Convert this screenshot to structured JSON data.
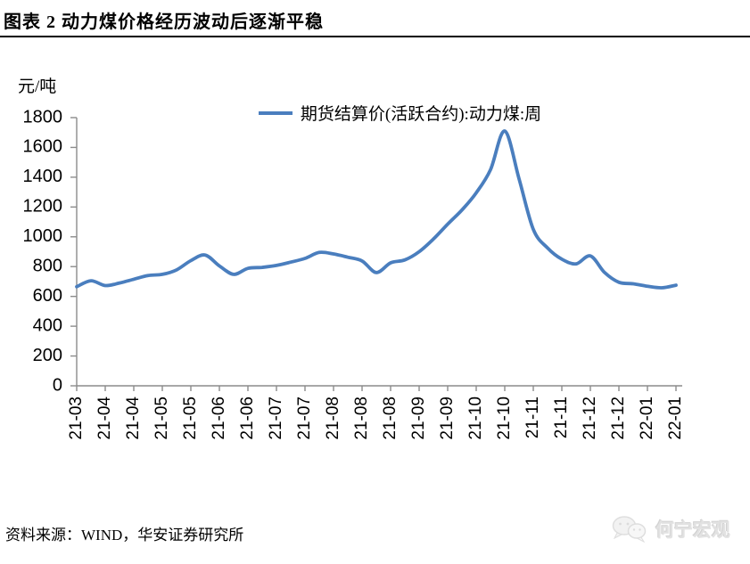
{
  "header": {
    "title": "图表 2  动力煤价格经历波动后逐渐平稳"
  },
  "chart": {
    "unit_label": "元/吨",
    "legend_label": "期货结算价(活跃合约):动力煤:周"
  },
  "footer": {
    "source": "资料来源：WIND，华安证券研究所",
    "watermark": "何宁宏观",
    "watermark_icon": "wechat-bubbles-icon"
  },
  "colors": {
    "line": "#4A7EBE",
    "axis": "#8C8C8C",
    "tick_label": "#000000",
    "watermark": "#E2E2E2"
  },
  "chart_data": {
    "type": "line",
    "title": "动力煤价格经历波动后逐渐平稳",
    "ylabel": "元/吨",
    "ylim": [
      0,
      1800
    ],
    "y_tick_step": 200,
    "y_tick_labels": [
      "0",
      "200",
      "400",
      "600",
      "800",
      "1000",
      "1200",
      "1400",
      "1600",
      "1800"
    ],
    "x_tick_labels": [
      "21-03",
      "21-04",
      "21-04",
      "21-05",
      "21-05",
      "21-06",
      "21-06",
      "21-07",
      "21-07",
      "21-08",
      "21-08",
      "21-08",
      "21-09",
      "21-09",
      "21-10",
      "21-10",
      "21-11",
      "21-11",
      "21-12",
      "21-12",
      "22-01",
      "22-01"
    ],
    "x_tick_every_n_points": 2,
    "grid": false,
    "legend_position": "top-center",
    "smoothed": true,
    "series": [
      {
        "name": "期货结算价(活跃合约):动力煤:周",
        "values": [
          665,
          705,
          673,
          690,
          715,
          740,
          748,
          778,
          840,
          878,
          805,
          748,
          788,
          795,
          808,
          830,
          855,
          895,
          885,
          863,
          838,
          760,
          825,
          845,
          900,
          985,
          1085,
          1180,
          1295,
          1450,
          1710,
          1390,
          1050,
          925,
          850,
          818,
          872,
          760,
          695,
          685,
          668,
          658,
          675
        ]
      }
    ]
  }
}
